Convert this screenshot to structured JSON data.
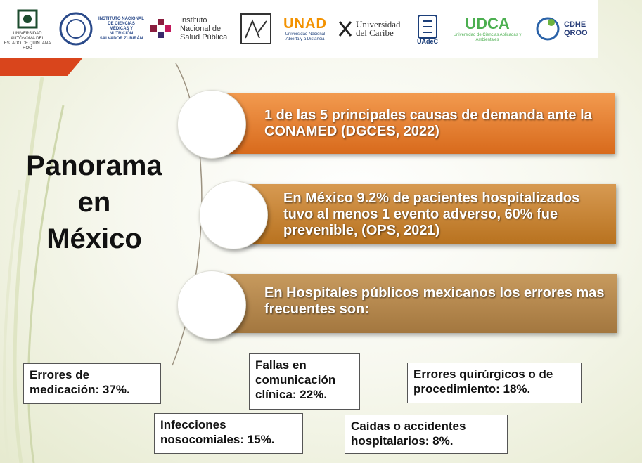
{
  "logos": [
    {
      "name": "uqroo",
      "caption": "UNIVERSIDAD AUTÓNOMA DEL ESTADO DE QUINTANA ROO"
    },
    {
      "name": "incmnsz",
      "caption": "INSTITUTO NACIONAL DE CIENCIAS MÉDICAS Y NUTRICIÓN SALVADOR ZUBIRÁN"
    },
    {
      "name": "insp",
      "caption": "Instituto Nacional de Salud Pública"
    },
    {
      "name": "cinvestav",
      "caption": ""
    },
    {
      "name": "unad",
      "caption": "Universidad Nacional Abierta y a Distancia",
      "mark": "UNAD"
    },
    {
      "name": "unicaribe",
      "caption": "Universidad del Caribe"
    },
    {
      "name": "uadec",
      "caption": "UAdeC"
    },
    {
      "name": "udca",
      "caption": "Universidad de Ciencias Aplicadas y Ambientales",
      "mark": "UDCA"
    },
    {
      "name": "cdheqroo",
      "caption": "CDHE QROO"
    }
  ],
  "title_lines": [
    "Panorama",
    "en",
    "México"
  ],
  "banners": [
    "1 de las 5 principales causas de demanda ante la CONAMED (DGCES, 2022)",
    "En México 9.2% de pacientes hospitalizados tuvo al menos 1 evento adverso, 60% fue prevenible, (OPS, 2021)",
    "En Hospitales públicos mexicanos los errores mas frecuentes son:"
  ],
  "stats": {
    "medicacion": "Errores de medicación: 37%.",
    "comunicacion": "Fallas en comunicación clínica: 22%.",
    "quirurgicos": "Errores quirúrgicos o de procedimiento: 18%.",
    "infecciones": "Infecciones nosocomiales: 15%.",
    "caidas": "Caídas o accidentes hospitalarios: 8%."
  },
  "colors": {
    "banner1": "#e07a2c",
    "banner2": "#c4822f",
    "banner3": "#b0864f",
    "accent": "#d9451c"
  }
}
